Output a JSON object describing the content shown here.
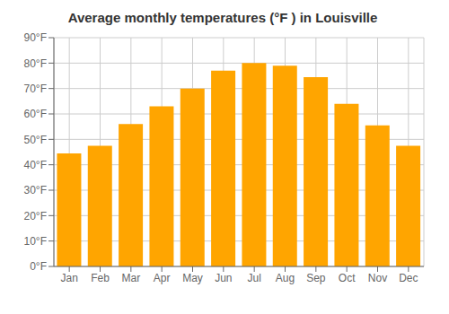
{
  "chart_data": {
    "type": "bar",
    "title": "Average monthly temperatures (°F ) in Louisville",
    "categories": [
      "Jan",
      "Feb",
      "Mar",
      "Apr",
      "May",
      "Jun",
      "Jul",
      "Aug",
      "Sep",
      "Oct",
      "Nov",
      "Dec"
    ],
    "values": [
      44.5,
      47.5,
      56,
      63,
      70,
      77,
      80,
      79,
      74.5,
      64,
      55.5,
      47.5
    ],
    "color": "#FFA500",
    "ylim": [
      0,
      90
    ],
    "yticks": [
      {
        "value": 0,
        "label": "0°F"
      },
      {
        "value": 10,
        "label": "10°F"
      },
      {
        "value": 20,
        "label": "20°F"
      },
      {
        "value": 30,
        "label": "30°F"
      },
      {
        "value": 40,
        "label": "40°F"
      },
      {
        "value": 50,
        "label": "50°F"
      },
      {
        "value": 60,
        "label": "60°F"
      },
      {
        "value": 70,
        "label": "70°F"
      },
      {
        "value": 80,
        "label": "80°F"
      },
      {
        "value": 90,
        "label": "90°F"
      }
    ],
    "grid": true
  }
}
